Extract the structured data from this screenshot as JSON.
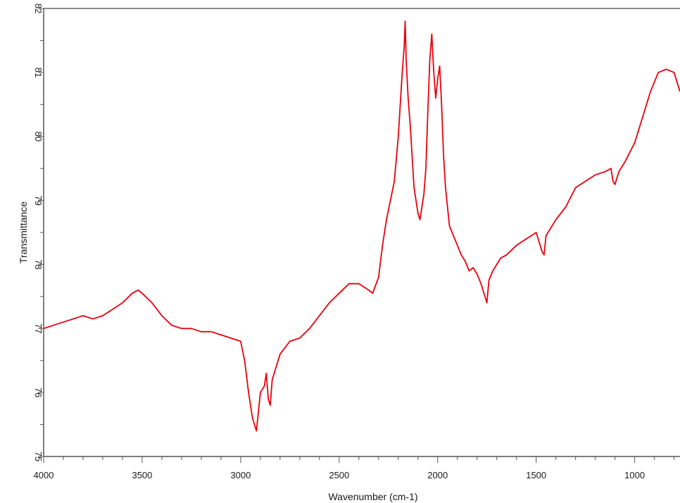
{
  "chart_data": {
    "type": "line",
    "title": "",
    "xlabel": "Wavenumber (cm-1)",
    "ylabel": "Transmittance",
    "xlim": [
      4000,
      770
    ],
    "ylim": [
      75,
      82
    ],
    "x_ticks": [
      {
        "value": 4000,
        "label": "4000"
      },
      {
        "value": 3500,
        "label": "3500"
      },
      {
        "value": 3000,
        "label": "3000"
      },
      {
        "value": 2500,
        "label": "2500"
      },
      {
        "value": 2000,
        "label": "2000"
      },
      {
        "value": 1500,
        "label": "1500"
      },
      {
        "value": 1000,
        "label": "1000"
      }
    ],
    "y_ticks": [
      {
        "value": 75,
        "label": "75"
      },
      {
        "value": 76,
        "label": "76"
      },
      {
        "value": 77,
        "label": "77"
      },
      {
        "value": 78,
        "label": "78"
      },
      {
        "value": 79,
        "label": "79"
      },
      {
        "value": 80,
        "label": "80"
      },
      {
        "value": 81,
        "label": "81"
      },
      {
        "value": 82,
        "label": "82"
      }
    ],
    "grid": false,
    "legend": "none",
    "series": [
      {
        "color": "#e8000b",
        "x": [
          4000,
          3950,
          3900,
          3850,
          3800,
          3750,
          3700,
          3650,
          3600,
          3550,
          3520,
          3500,
          3450,
          3400,
          3350,
          3300,
          3250,
          3200,
          3150,
          3100,
          3050,
          3000,
          2980,
          2960,
          2940,
          2930,
          2920,
          2910,
          2900,
          2880,
          2870,
          2860,
          2850,
          2840,
          2820,
          2800,
          2750,
          2700,
          2650,
          2600,
          2550,
          2500,
          2450,
          2400,
          2350,
          2330,
          2300,
          2280,
          2260,
          2240,
          2220,
          2200,
          2190,
          2180,
          2170,
          2165,
          2160,
          2150,
          2140,
          2130,
          2120,
          2110,
          2100,
          2090,
          2080,
          2070,
          2060,
          2050,
          2040,
          2030,
          2020,
          2010,
          2000,
          1990,
          1980,
          1970,
          1960,
          1950,
          1940,
          1920,
          1900,
          1880,
          1860,
          1840,
          1820,
          1800,
          1780,
          1760,
          1750,
          1740,
          1720,
          1700,
          1680,
          1650,
          1600,
          1550,
          1500,
          1470,
          1460,
          1450,
          1400,
          1350,
          1300,
          1250,
          1200,
          1150,
          1120,
          1110,
          1100,
          1080,
          1050,
          1000,
          960,
          920,
          880,
          840,
          800,
          770
        ],
        "y": [
          77.0,
          77.05,
          77.1,
          77.15,
          77.2,
          77.15,
          77.2,
          77.3,
          77.4,
          77.55,
          77.6,
          77.55,
          77.4,
          77.2,
          77.05,
          77.0,
          77.0,
          76.95,
          76.95,
          76.9,
          76.85,
          76.8,
          76.5,
          76.0,
          75.6,
          75.5,
          75.4,
          75.7,
          76.0,
          76.1,
          76.3,
          75.9,
          75.8,
          76.2,
          76.4,
          76.6,
          76.8,
          76.85,
          77.0,
          77.2,
          77.4,
          77.55,
          77.7,
          77.7,
          77.6,
          77.55,
          77.8,
          78.3,
          78.7,
          79.0,
          79.3,
          80.0,
          80.5,
          81.0,
          81.4,
          81.8,
          81.2,
          80.6,
          80.2,
          79.7,
          79.2,
          79.0,
          78.8,
          78.7,
          78.9,
          79.1,
          79.5,
          80.4,
          81.2,
          81.6,
          81.0,
          80.6,
          80.9,
          81.1,
          80.5,
          79.7,
          79.2,
          78.9,
          78.6,
          78.45,
          78.3,
          78.15,
          78.05,
          77.9,
          77.95,
          77.85,
          77.7,
          77.5,
          77.4,
          77.75,
          77.9,
          78.0,
          78.1,
          78.15,
          78.3,
          78.4,
          78.5,
          78.2,
          78.15,
          78.45,
          78.7,
          78.9,
          79.2,
          79.3,
          79.4,
          79.45,
          79.5,
          79.3,
          79.25,
          79.45,
          79.6,
          79.9,
          80.3,
          80.7,
          81.0,
          81.05,
          81.0,
          80.7
        ]
      }
    ]
  }
}
